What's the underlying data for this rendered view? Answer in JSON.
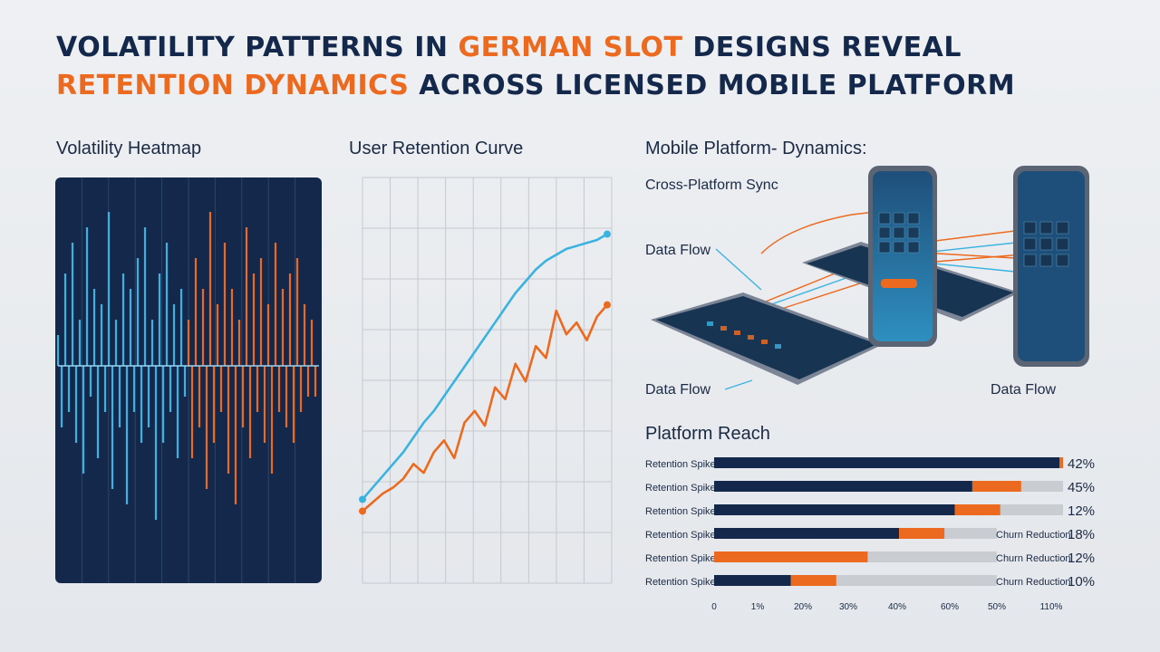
{
  "title": {
    "line1_a": "VOLATILITY PATTERNS IN ",
    "line1_hl": "GERMAN SLOT",
    "line1_b": " DESIGNS REVEAL",
    "line2_hl": "RETENTION DYNAMICS",
    "line2_b": " ACROSS LICENSED MOBILE PLATFORM"
  },
  "colors": {
    "navy": "#13284a",
    "orange": "#ec6a1f",
    "cyan": "#3bb3e0",
    "gray_track": "#c9ccd1",
    "grid": "#c5c9cf"
  },
  "heatmap": {
    "label": "Volatility Heatmap"
  },
  "retention": {
    "label": "User Retention Curve"
  },
  "mobile": {
    "label": "Mobile Platform- Dynamics:",
    "sync_label": "Cross-Platform Sync",
    "flow_label_1": "Data Flow",
    "flow_label_2": "Data Flow",
    "flow_label_3": "Data Flow"
  },
  "reach": {
    "label": "Platform Reach"
  },
  "chart_data": [
    {
      "type": "bar",
      "title": "Volatility Heatmap",
      "note": "oscillating waveform, cyan half then orange half",
      "series": [
        {
          "name": "",
          "color": "cyan",
          "values": [
            0.2,
            -0.4,
            0.6,
            -0.3,
            0.8,
            -0.5,
            0.3,
            -0.7,
            0.9,
            -0.2,
            0.5,
            -0.6,
            0.4,
            -0.3,
            1.0,
            -0.8,
            0.3,
            -0.4,
            0.6,
            -0.9,
            0.5,
            -0.3,
            0.7,
            -0.5,
            0.9,
            -0.4,
            0.3,
            -1.0,
            0.6,
            -0.5,
            0.8,
            -0.3,
            0.4,
            -0.6,
            0.5,
            -0.2
          ]
        },
        {
          "name": "",
          "color": "orange",
          "values": [
            0.3,
            -0.6,
            0.7,
            -0.4,
            0.5,
            -0.8,
            1.0,
            -0.5,
            0.4,
            -0.3,
            0.8,
            -0.7,
            0.5,
            -0.9,
            0.3,
            -0.4,
            0.9,
            -0.6,
            0.6,
            -0.3,
            0.7,
            -0.5,
            0.4,
            -0.7,
            0.8,
            -0.3,
            0.5,
            -0.4,
            0.6,
            -0.5,
            0.7,
            -0.3,
            0.4,
            -0.2,
            0.3,
            -0.2
          ]
        }
      ]
    },
    {
      "type": "line",
      "title": "User Retention Curve",
      "x": [
        0,
        1,
        2,
        3,
        4,
        5,
        6,
        7,
        8,
        9,
        10,
        11,
        12,
        13,
        14,
        15,
        16,
        17,
        18,
        19,
        20,
        21,
        22,
        23,
        24
      ],
      "series": [
        {
          "name": "",
          "color": "cyan",
          "values": [
            10,
            14,
            18,
            22,
            26,
            31,
            36,
            40,
            45,
            50,
            55,
            60,
            65,
            70,
            75,
            80,
            84,
            88,
            91,
            93,
            95,
            96,
            97,
            98,
            100
          ]
        },
        {
          "name": "",
          "color": "orange",
          "values": [
            6,
            9,
            12,
            14,
            17,
            22,
            19,
            26,
            30,
            24,
            36,
            40,
            35,
            48,
            44,
            56,
            50,
            62,
            58,
            74,
            66,
            70,
            64,
            72,
            76
          ]
        }
      ],
      "ylim": [
        0,
        110
      ],
      "grid": true
    },
    {
      "type": "bar",
      "orientation": "horizontal",
      "title": "Platform Reach",
      "categories": [
        "Retention Spike",
        "Retention Spike",
        "Retention Spike",
        "Retention Spike",
        "Retention Spike",
        "Retention Spike"
      ],
      "x_ticks": [
        "0",
        "1%",
        "20%",
        "30%",
        "40%",
        "60%",
        "50%",
        "110%"
      ],
      "rows": [
        {
          "label": "Retention Spike",
          "navy": 0.99,
          "orange": 0.01,
          "track": 1.0,
          "value_label": "42%",
          "churn_label": ""
        },
        {
          "label": "Retention Spike",
          "navy": 0.74,
          "orange": 0.14,
          "track": 1.0,
          "value_label": "45%",
          "churn_label": ""
        },
        {
          "label": "Retention Spike",
          "navy": 0.69,
          "orange": 0.13,
          "track": 1.0,
          "value_label": "12%",
          "churn_label": ""
        },
        {
          "label": "Retention Spike",
          "navy": 0.53,
          "orange": 0.13,
          "track": 0.81,
          "value_label": "18%",
          "churn_label": "Churn Reduction"
        },
        {
          "label": "Retention Spike",
          "navy": 0.0,
          "orange": 0.44,
          "track": 0.81,
          "value_label": "12%",
          "churn_label": "Churn Reduction"
        },
        {
          "label": "Retention Spike",
          "navy": 0.22,
          "orange": 0.13,
          "track": 0.81,
          "value_label": "10%",
          "churn_label": "Churn Reduction"
        }
      ]
    }
  ]
}
